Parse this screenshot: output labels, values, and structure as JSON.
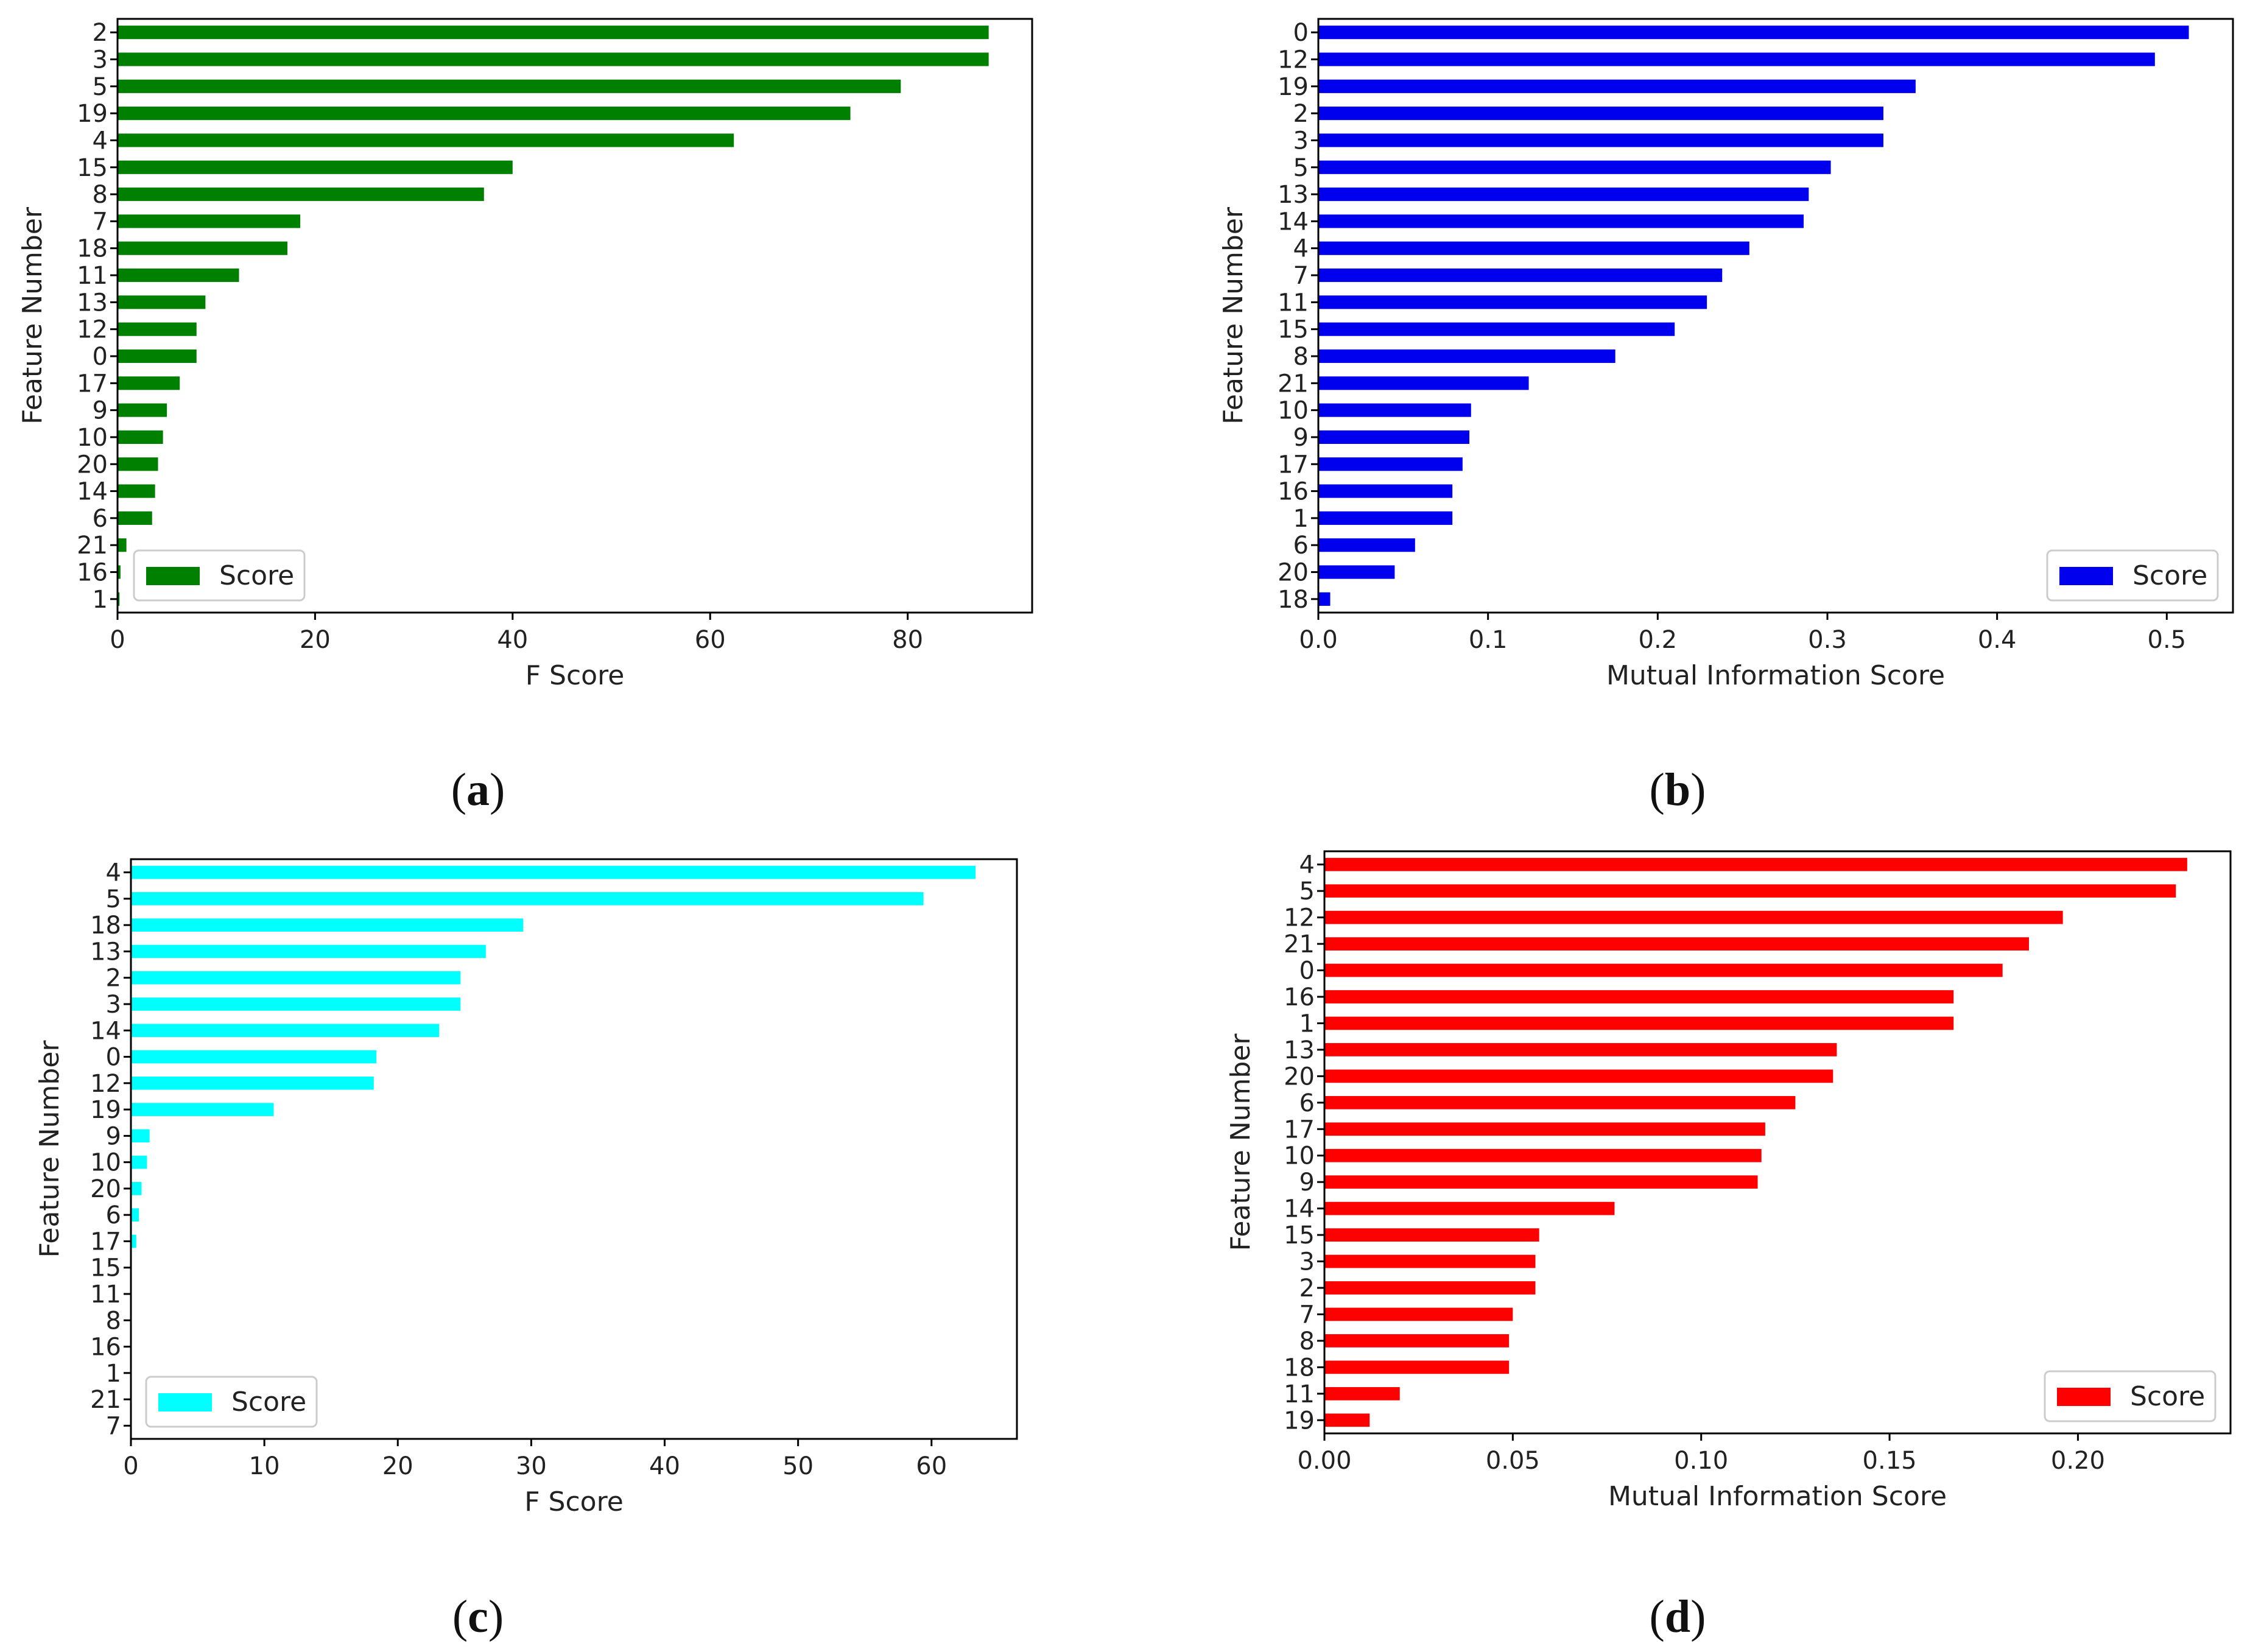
{
  "chart_data": [
    {
      "type": "bar",
      "orientation": "horizontal",
      "panel_label": "a",
      "color": "#008000",
      "categories": [
        "2",
        "3",
        "5",
        "19",
        "4",
        "15",
        "8",
        "7",
        "18",
        "11",
        "13",
        "12",
        "0",
        "17",
        "9",
        "10",
        "20",
        "14",
        "6",
        "21",
        "16",
        "1"
      ],
      "series": [
        {
          "name": "Score",
          "values": [
            88.2,
            88.2,
            79.3,
            74.2,
            62.4,
            40.0,
            37.1,
            18.5,
            17.2,
            12.3,
            8.9,
            8.0,
            8.0,
            6.3,
            5.0,
            4.6,
            4.1,
            3.8,
            3.5,
            0.9,
            0.3,
            0.2
          ]
        }
      ],
      "xlabel": "F Score",
      "ylabel": "Feature Number",
      "xlim": [
        0,
        92.6
      ],
      "xticks": [
        0,
        20,
        40,
        60,
        80
      ],
      "xtick_labels": [
        "0",
        "20",
        "40",
        "60",
        "80"
      ],
      "legend": {
        "label": "Score",
        "position": "lower-left"
      },
      "grid": false
    },
    {
      "type": "bar",
      "orientation": "horizontal",
      "panel_label": "b",
      "color": "#0000ee",
      "categories": [
        "0",
        "12",
        "19",
        "2",
        "3",
        "5",
        "13",
        "14",
        "4",
        "7",
        "11",
        "15",
        "8",
        "21",
        "10",
        "9",
        "17",
        "16",
        "1",
        "6",
        "20",
        "18"
      ],
      "series": [
        {
          "name": "Score",
          "values": [
            0.513,
            0.493,
            0.352,
            0.333,
            0.333,
            0.302,
            0.289,
            0.286,
            0.254,
            0.238,
            0.229,
            0.21,
            0.175,
            0.124,
            0.09,
            0.089,
            0.085,
            0.079,
            0.079,
            0.057,
            0.045,
            0.007
          ]
        }
      ],
      "xlabel": "Mutual Information Score",
      "ylabel": "Feature Number",
      "xlim": [
        0,
        0.539
      ],
      "xticks": [
        0.0,
        0.1,
        0.2,
        0.3,
        0.4,
        0.5
      ],
      "xtick_labels": [
        "0.0",
        "0.1",
        "0.2",
        "0.3",
        "0.4",
        "0.5"
      ],
      "legend": {
        "label": "Score",
        "position": "lower-right"
      },
      "grid": false
    },
    {
      "type": "bar",
      "orientation": "horizontal",
      "panel_label": "c",
      "color": "#00ffff",
      "categories": [
        "4",
        "5",
        "18",
        "13",
        "2",
        "3",
        "14",
        "0",
        "12",
        "19",
        "9",
        "10",
        "20",
        "6",
        "17",
        "15",
        "11",
        "8",
        "16",
        "1",
        "21",
        "7"
      ],
      "series": [
        {
          "name": "Score",
          "values": [
            63.3,
            59.4,
            29.4,
            26.6,
            24.7,
            24.7,
            23.1,
            18.4,
            18.2,
            10.7,
            1.4,
            1.2,
            0.8,
            0.6,
            0.4,
            0.0,
            0.0,
            0.0,
            0.0,
            0.0,
            0.0,
            0.0
          ]
        }
      ],
      "xlabel": "F Score",
      "ylabel": "Feature Number",
      "xlim": [
        0,
        66.4
      ],
      "xticks": [
        0,
        10,
        20,
        30,
        40,
        50,
        60
      ],
      "xtick_labels": [
        "0",
        "10",
        "20",
        "30",
        "40",
        "50",
        "60"
      ],
      "legend": {
        "label": "Score",
        "position": "lower-left"
      },
      "grid": false
    },
    {
      "type": "bar",
      "orientation": "horizontal",
      "panel_label": "d",
      "color": "#ff0000",
      "categories": [
        "4",
        "5",
        "12",
        "21",
        "0",
        "16",
        "1",
        "13",
        "20",
        "6",
        "17",
        "10",
        "9",
        "14",
        "15",
        "3",
        "2",
        "7",
        "8",
        "18",
        "11",
        "19"
      ],
      "series": [
        {
          "name": "Score",
          "values": [
            0.229,
            0.226,
            0.196,
            0.187,
            0.18,
            0.167,
            0.167,
            0.136,
            0.135,
            0.125,
            0.117,
            0.116,
            0.115,
            0.077,
            0.057,
            0.056,
            0.056,
            0.05,
            0.049,
            0.049,
            0.02,
            0.012
          ]
        }
      ],
      "xlabel": "Mutual Information Score",
      "ylabel": "Feature Number",
      "xlim": [
        0,
        0.2405
      ],
      "xticks": [
        0.0,
        0.05,
        0.1,
        0.15,
        0.2
      ],
      "xtick_labels": [
        "0.00",
        "0.05",
        "0.10",
        "0.15",
        "0.20"
      ],
      "legend": {
        "label": "Score",
        "position": "lower-right"
      },
      "grid": false
    }
  ],
  "captions": [
    {
      "open": "(",
      "letter": "a",
      "close": ")"
    },
    {
      "open": "(",
      "letter": "b",
      "close": ")"
    },
    {
      "open": "(",
      "letter": "c",
      "close": ")"
    },
    {
      "open": "(",
      "letter": "d",
      "close": ")"
    }
  ]
}
